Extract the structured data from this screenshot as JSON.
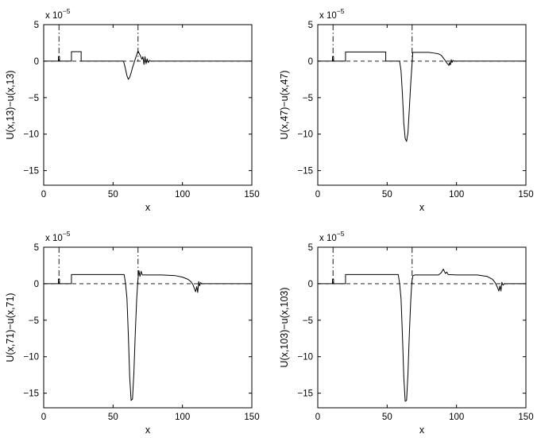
{
  "chart_data": [
    {
      "type": "line",
      "title": "",
      "xlabel": "x",
      "ylabel": "U(x,13)−u(x,13)",
      "y_scale_note": "x 10",
      "y_scale_exponent": "−5",
      "xlim": [
        0,
        150
      ],
      "ylim": [
        -17,
        5
      ],
      "xticks": [
        0,
        50,
        100,
        150
      ],
      "yticks": [
        5,
        0,
        -5,
        -10,
        -15
      ],
      "vertical_markers": [
        11,
        68
      ],
      "series": [
        {
          "style": "solid",
          "x": [
            0,
            10,
            10.6,
            10.6,
            11.4,
            11.4,
            20,
            20,
            27,
            27,
            40,
            57.5,
            58.5,
            60,
            61,
            62,
            63,
            64,
            66,
            68,
            69,
            70,
            70.8,
            71.5,
            72.3,
            73,
            73.8,
            74.6,
            75.4,
            76.2,
            77,
            80,
            150
          ],
          "y": [
            0,
            0,
            0,
            0.6,
            0.6,
            0,
            0,
            1.3,
            1.3,
            0,
            0,
            0,
            -0.7,
            -2.0,
            -2.5,
            -2.2,
            -1.6,
            -0.9,
            0.3,
            1.4,
            1.0,
            0.6,
            0.25,
            0.6,
            -0.45,
            0.6,
            -0.35,
            0.3,
            -0.2,
            0.1,
            0,
            0,
            0
          ]
        },
        {
          "style": "dashed",
          "x": [
            0,
            150
          ],
          "y": [
            0,
            0
          ]
        }
      ]
    },
    {
      "type": "line",
      "title": "",
      "xlabel": "x",
      "ylabel": "U(x,47)−u(x,47)",
      "y_scale_note": "x 10",
      "y_scale_exponent": "−5",
      "xlim": [
        0,
        150
      ],
      "ylim": [
        -17,
        5
      ],
      "xticks": [
        0,
        50,
        100,
        150
      ],
      "yticks": [
        5,
        0,
        -5,
        -10,
        -15
      ],
      "vertical_markers": [
        11,
        68
      ],
      "series": [
        {
          "style": "solid",
          "x": [
            0,
            10,
            10.6,
            10.6,
            11.4,
            11.4,
            20,
            20,
            49,
            49,
            58,
            59,
            60,
            61,
            62,
            63,
            64,
            65,
            66,
            67,
            67.8,
            68.5,
            75,
            80,
            84,
            87,
            89,
            90,
            91,
            92,
            93,
            94,
            94.5,
            95,
            95.6,
            96.2,
            96.8,
            97.4,
            98,
            100,
            150
          ],
          "y": [
            0,
            0,
            0,
            0.6,
            0.6,
            0,
            0,
            1.25,
            1.25,
            0,
            0,
            0,
            -1.3,
            -4.5,
            -8.5,
            -10.6,
            -11.0,
            -9.8,
            -6.5,
            -3.0,
            -0.8,
            1.2,
            1.2,
            1.2,
            1.1,
            1.0,
            0.8,
            0.55,
            0.3,
            0.05,
            -0.25,
            -0.45,
            -0.6,
            -0.2,
            -0.5,
            0.2,
            -0.2,
            0.1,
            0,
            0,
            0
          ]
        },
        {
          "style": "dashed",
          "x": [
            0,
            150
          ],
          "y": [
            0,
            0
          ]
        }
      ]
    },
    {
      "type": "line",
      "title": "",
      "xlabel": "x",
      "ylabel": "U(x,71)−u(x,71)",
      "y_scale_note": "x 10",
      "y_scale_exponent": "−5",
      "xlim": [
        0,
        150
      ],
      "ylim": [
        -17,
        5
      ],
      "xticks": [
        0,
        50,
        100,
        150
      ],
      "yticks": [
        5,
        0,
        -5,
        -10,
        -15
      ],
      "vertical_markers": [
        11,
        68
      ],
      "series": [
        {
          "style": "solid",
          "x": [
            0,
            10,
            10.6,
            10.6,
            11.4,
            11.4,
            20,
            20,
            58,
            59,
            60,
            61,
            62,
            63,
            64,
            65,
            66,
            67,
            67.8,
            68.6,
            69.4,
            70.2,
            71,
            72,
            75,
            85,
            95,
            100,
            104,
            106,
            107.5,
            108.5,
            109.5,
            110.3,
            111,
            111.7,
            112.4,
            113,
            114,
            115,
            150
          ],
          "y": [
            0,
            0,
            0,
            0.6,
            0.6,
            0,
            0,
            1.25,
            1.25,
            0,
            -2.0,
            -7.0,
            -12.8,
            -16.0,
            -15.8,
            -12.2,
            -6.8,
            -2.2,
            0.3,
            1.8,
            1.0,
            1.7,
            1.2,
            1.2,
            1.2,
            1.2,
            1.1,
            0.9,
            0.6,
            0.3,
            -0.1,
            -0.6,
            -1.1,
            -0.4,
            -1.2,
            0.3,
            -0.3,
            0.15,
            0,
            0,
            0
          ]
        },
        {
          "style": "dashed",
          "x": [
            0,
            150
          ],
          "y": [
            0,
            0
          ]
        }
      ]
    },
    {
      "type": "line",
      "title": "",
      "xlabel": "x",
      "ylabel": "U(x,103)−u(x,103)",
      "y_scale_note": "x 10",
      "y_scale_exponent": "−5",
      "xlim": [
        0,
        150
      ],
      "ylim": [
        -17,
        5
      ],
      "xticks": [
        0,
        50,
        100,
        150
      ],
      "yticks": [
        5,
        0,
        -5,
        -10,
        -15
      ],
      "vertical_markers": [
        11,
        68
      ],
      "series": [
        {
          "style": "solid",
          "x": [
            0,
            10,
            10.6,
            10.6,
            11.4,
            11.4,
            20,
            20,
            58,
            59,
            60,
            61,
            62,
            63,
            64,
            65,
            66,
            67,
            67.8,
            68.6,
            70,
            80,
            87,
            89,
            90.5,
            92,
            93,
            94,
            100,
            115,
            122,
            126,
            128,
            129.5,
            130.5,
            131.3,
            132,
            132.7,
            133.5,
            134.5,
            150
          ],
          "y": [
            0,
            0,
            0,
            0.6,
            0.6,
            0,
            0,
            1.25,
            1.25,
            0,
            -2.0,
            -7.0,
            -12.8,
            -16.1,
            -16.0,
            -12.3,
            -6.9,
            -2.3,
            0.3,
            1.1,
            1.2,
            1.2,
            1.2,
            1.5,
            2.0,
            1.4,
            1.6,
            1.25,
            1.2,
            1.2,
            1.0,
            0.6,
            0.1,
            -0.5,
            -1.0,
            -0.3,
            -1.0,
            0.2,
            -0.2,
            0,
            0
          ]
        },
        {
          "style": "dashed",
          "x": [
            0,
            150
          ],
          "y": [
            0,
            0
          ]
        }
      ]
    }
  ]
}
